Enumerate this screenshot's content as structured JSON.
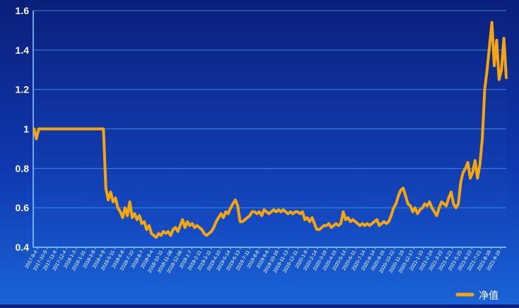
{
  "legend": {
    "label": "净值",
    "color": "#f5a50f"
  },
  "chart_data": {
    "type": "line",
    "ylim": [
      0.4,
      1.6
    ],
    "yticks": [
      "0.4",
      "0.6",
      "0.8",
      "1",
      "1.2",
      "1.4",
      "1.6"
    ],
    "ytick_values": [
      0.4,
      0.6,
      0.8,
      1.0,
      1.2,
      1.4,
      1.6
    ],
    "grid": true,
    "legend_position": "bottom-right",
    "xticks": [
      "2017-9-4",
      "2017-10-9",
      "2017-11-6",
      "2017-12-4",
      "2018-1-3",
      "2018-1-31",
      "2018-3-8",
      "2018-4-9",
      "2018-5-11",
      "2018-6-8",
      "2018-7-10",
      "2018-8-7",
      "2018-9-4",
      "2018-10-11",
      "2018-11-08",
      "2018-12-06",
      "2019-1-7",
      "2019-2-11",
      "2019-3-11",
      "2019-4-10",
      "2019-5-14",
      "2019-6-13",
      "2019-7-11",
      "2019-8-8",
      "2019-9-6",
      "2019-10-16",
      "2019-11-13",
      "2019-12-11",
      "2020-1-9",
      "2020-2-14",
      "2020-3-16",
      "2020-4-15",
      "2020-5-14",
      "2020-6-11",
      "2020-7-14",
      "2020-8-14",
      "2020-9-16",
      "2020-10-22",
      "2020-11-19",
      "2020-12-17",
      "2021-1-15",
      "2021-2-24",
      "2021-3-22",
      "2021-4-21",
      "2021-5-25",
      "2021-6-23",
      "2021-7-21",
      "2021-8-18",
      "2021-9-16"
    ],
    "series": [
      {
        "name": "净值",
        "color": "#f5a50f",
        "values": [
          1.0,
          0.95,
          1.0,
          1.0,
          1.0,
          1.0,
          1.0,
          1.0,
          1.0,
          1.0,
          1.0,
          1.0,
          1.0,
          1.0,
          1.0,
          1.0,
          1.0,
          1.0,
          1.0,
          1.0,
          1.0,
          1.0,
          1.0,
          1.0,
          1.0,
          1.0,
          1.0,
          1.0,
          1.0,
          1.0,
          0.7,
          0.64,
          0.68,
          0.63,
          0.65,
          0.6,
          0.58,
          0.55,
          0.6,
          0.56,
          0.63,
          0.55,
          0.57,
          0.54,
          0.56,
          0.52,
          0.53,
          0.49,
          0.51,
          0.47,
          0.46,
          0.45,
          0.47,
          0.46,
          0.48,
          0.47,
          0.48,
          0.46,
          0.49,
          0.5,
          0.48,
          0.51,
          0.54,
          0.5,
          0.53,
          0.51,
          0.52,
          0.5,
          0.51,
          0.5,
          0.49,
          0.47,
          0.46,
          0.47,
          0.48,
          0.5,
          0.53,
          0.55,
          0.57,
          0.55,
          0.58,
          0.57,
          0.6,
          0.62,
          0.64,
          0.61,
          0.53,
          0.53,
          0.54,
          0.55,
          0.56,
          0.58,
          0.58,
          0.57,
          0.58,
          0.56,
          0.59,
          0.58,
          0.57,
          0.58,
          0.59,
          0.58,
          0.59,
          0.58,
          0.59,
          0.58,
          0.57,
          0.58,
          0.57,
          0.58,
          0.58,
          0.57,
          0.58,
          0.54,
          0.55,
          0.53,
          0.55,
          0.52,
          0.49,
          0.49,
          0.5,
          0.51,
          0.51,
          0.52,
          0.5,
          0.51,
          0.52,
          0.51,
          0.52,
          0.58,
          0.54,
          0.55,
          0.53,
          0.54,
          0.53,
          0.52,
          0.51,
          0.52,
          0.51,
          0.52,
          0.51,
          0.52,
          0.53,
          0.54,
          0.51,
          0.52,
          0.53,
          0.52,
          0.53,
          0.56,
          0.6,
          0.62,
          0.66,
          0.69,
          0.7,
          0.66,
          0.62,
          0.61,
          0.58,
          0.6,
          0.57,
          0.59,
          0.6,
          0.62,
          0.61,
          0.63,
          0.6,
          0.58,
          0.56,
          0.6,
          0.63,
          0.62,
          0.61,
          0.65,
          0.68,
          0.62,
          0.6,
          0.62,
          0.73,
          0.78,
          0.8,
          0.83,
          0.75,
          0.78,
          0.84,
          0.75,
          0.82,
          0.95,
          1.2,
          1.3,
          1.42,
          1.54,
          1.32,
          1.45,
          1.25,
          1.3,
          1.46,
          1.26
        ]
      }
    ]
  }
}
